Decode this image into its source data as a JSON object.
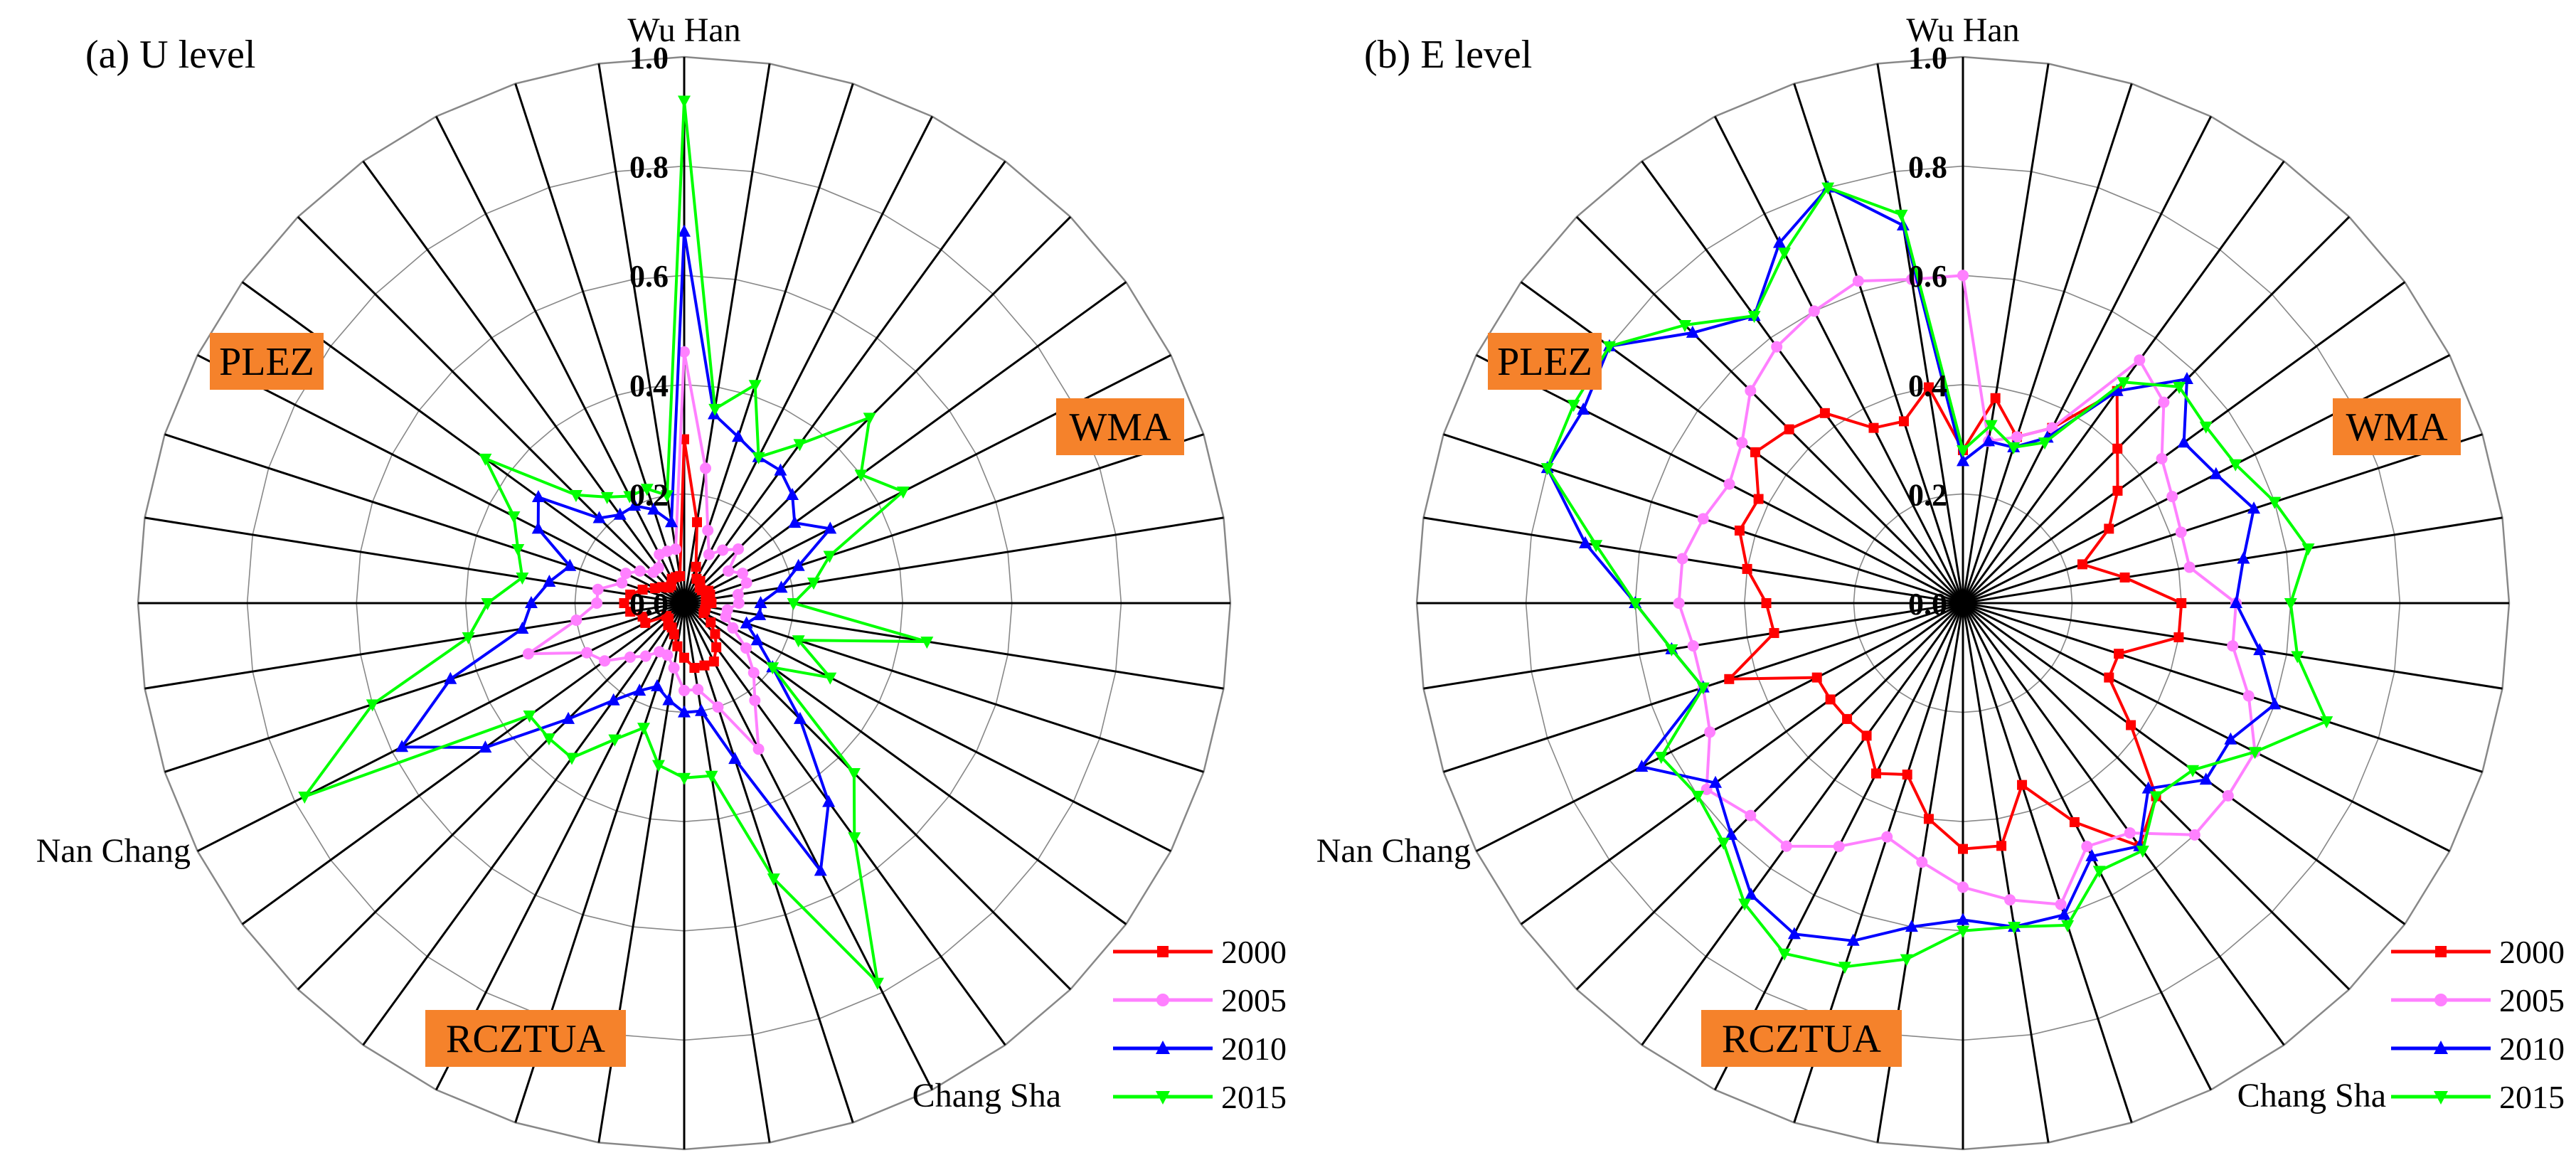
{
  "colors": {
    "2000": "#ff0000",
    "2005": "#ff80ff",
    "2010": "#0000ff",
    "2015": "#00ff00",
    "region_bg": "#f5822b",
    "grid_spoke": "#000000",
    "grid_ring": "#888888"
  },
  "chart_data": [
    {
      "type": "radar",
      "title": "(a) U level",
      "axis_count": 40,
      "rlim": [
        0,
        1.0
      ],
      "ticks": [
        "0.0",
        "0.2",
        "0.4",
        "0.6",
        "0.8",
        "1.0"
      ],
      "tick_values": [
        0,
        0.2,
        0.4,
        0.6,
        0.8,
        1.0
      ],
      "city_labels": [
        {
          "text": "Wu Han",
          "axis": 0
        },
        {
          "text": "Nan Chang",
          "axis": 27
        },
        {
          "text": "Chang Sha",
          "axis": 16
        }
      ],
      "regions": [
        "PLEZ",
        "WMA",
        "RCZTUA"
      ],
      "legend": [
        "2000",
        "2005",
        "2010",
        "2015"
      ],
      "series": [
        {
          "name": "2000",
          "values": [
            0.3,
            0.15,
            0.07,
            0.05,
            0.05,
            0.04,
            0.04,
            0.05,
            0.05,
            0.04,
            0.05,
            0.04,
            0.04,
            0.04,
            0.06,
            0.08,
            0.1,
            0.12,
            0.12,
            0.12,
            0.1,
            0.08,
            0.06,
            0.05,
            0.05,
            0.04,
            0.04,
            0.08,
            0.08,
            0.1,
            0.11,
            0.1,
            0.08,
            0.06,
            0.05,
            0.04,
            0.04,
            0.05,
            0.05,
            0.05
          ]
        },
        {
          "name": "2005",
          "values": [
            0.46,
            0.25,
            0.14,
            0.1,
            0.12,
            0.14,
            0.1,
            0.12,
            0.12,
            0.1,
            0.1,
            0.08,
            0.08,
            0.1,
            0.14,
            0.18,
            0.22,
            0.3,
            0.2,
            0.16,
            0.16,
            0.12,
            0.1,
            0.1,
            0.12,
            0.14,
            0.18,
            0.2,
            0.3,
            0.2,
            0.16,
            0.16,
            0.12,
            0.12,
            0.1,
            0.08,
            0.08,
            0.1,
            0.1,
            0.1
          ]
        },
        {
          "name": "2010",
          "values": [
            0.68,
            0.35,
            0.32,
            0.3,
            0.3,
            0.28,
            0.25,
            0.3,
            0.22,
            0.18,
            0.14,
            0.14,
            0.12,
            0.15,
            0.2,
            0.3,
            0.45,
            0.55,
            0.3,
            0.2,
            0.2,
            0.18,
            0.16,
            0.18,
            0.22,
            0.3,
            0.45,
            0.58,
            0.45,
            0.3,
            0.28,
            0.25,
            0.22,
            0.3,
            0.33,
            0.22,
            0.2,
            0.2,
            0.18,
            0.15
          ]
        },
        {
          "name": "2015",
          "values": [
            0.92,
            0.36,
            0.42,
            0.3,
            0.36,
            0.48,
            0.4,
            0.45,
            0.28,
            0.24,
            0.2,
            0.45,
            0.22,
            0.3,
            0.2,
            0.44,
            0.53,
            0.78,
            0.53,
            0.32,
            0.32,
            0.3,
            0.24,
            0.28,
            0.35,
            0.35,
            0.35,
            0.78,
            0.6,
            0.4,
            0.36,
            0.3,
            0.32,
            0.35,
            0.45,
            0.28,
            0.24,
            0.22,
            0.22,
            0.2
          ]
        }
      ]
    },
    {
      "type": "radar",
      "title": "(b) E level",
      "axis_count": 40,
      "rlim": [
        0,
        1.0
      ],
      "ticks": [
        "0.0",
        "0.2",
        "0.4",
        "0.6",
        "0.8",
        "1.0"
      ],
      "tick_values": [
        0,
        0.2,
        0.4,
        0.6,
        0.8,
        1.0
      ],
      "city_labels": [
        {
          "text": "Wu Han",
          "axis": 0
        },
        {
          "text": "Nan Chang",
          "axis": 27
        },
        {
          "text": "Chang Sha",
          "axis": 16
        }
      ],
      "regions": [
        "PLEZ",
        "WMA",
        "RCZTUA"
      ],
      "legend": [
        "2000",
        "2005",
        "2010",
        "2015"
      ],
      "series": [
        {
          "name": "2000",
          "values": [
            0.28,
            0.38,
            0.32,
            0.36,
            0.48,
            0.4,
            0.35,
            0.3,
            0.23,
            0.3,
            0.4,
            0.4,
            0.3,
            0.3,
            0.38,
            0.5,
            0.55,
            0.45,
            0.35,
            0.45,
            0.45,
            0.4,
            0.33,
            0.35,
            0.3,
            0.3,
            0.3,
            0.3,
            0.45,
            0.35,
            0.36,
            0.4,
            0.43,
            0.42,
            0.47,
            0.45,
            0.43,
            0.36,
            0.35,
            0.4
          ]
        },
        {
          "name": "2005",
          "values": [
            0.6,
            0.3,
            0.32,
            0.36,
            0.55,
            0.52,
            0.45,
            0.43,
            0.42,
            0.42,
            0.5,
            0.5,
            0.55,
            0.6,
            0.6,
            0.6,
            0.52,
            0.5,
            0.58,
            0.55,
            0.52,
            0.48,
            0.45,
            0.5,
            0.55,
            0.55,
            0.58,
            0.52,
            0.5,
            0.5,
            0.52,
            0.52,
            0.5,
            0.48,
            0.5,
            0.55,
            0.58,
            0.6,
            0.62,
            0.6
          ]
        },
        {
          "name": "2010",
          "values": [
            0.26,
            0.3,
            0.3,
            0.34,
            0.48,
            0.58,
            0.5,
            0.52,
            0.56,
            0.52,
            0.5,
            0.55,
            0.6,
            0.55,
            0.55,
            0.48,
            0.55,
            0.52,
            0.6,
            0.6,
            0.58,
            0.6,
            0.65,
            0.68,
            0.66,
            0.6,
            0.56,
            0.66,
            0.5,
            0.54,
            0.6,
            0.7,
            0.8,
            0.78,
            0.8,
            0.7,
            0.65,
            0.74,
            0.8,
            0.7
          ]
        },
        {
          "name": "2015",
          "values": [
            0.28,
            0.33,
            0.3,
            0.33,
            0.5,
            0.56,
            0.55,
            0.56,
            0.6,
            0.64,
            0.6,
            0.62,
            0.7,
            0.6,
            0.52,
            0.5,
            0.56,
            0.55,
            0.62,
            0.6,
            0.6,
            0.66,
            0.7,
            0.72,
            0.68,
            0.62,
            0.6,
            0.62,
            0.5,
            0.54,
            0.6,
            0.68,
            0.8,
            0.8,
            0.8,
            0.72,
            0.65,
            0.72,
            0.8,
            0.72
          ]
        }
      ]
    }
  ]
}
